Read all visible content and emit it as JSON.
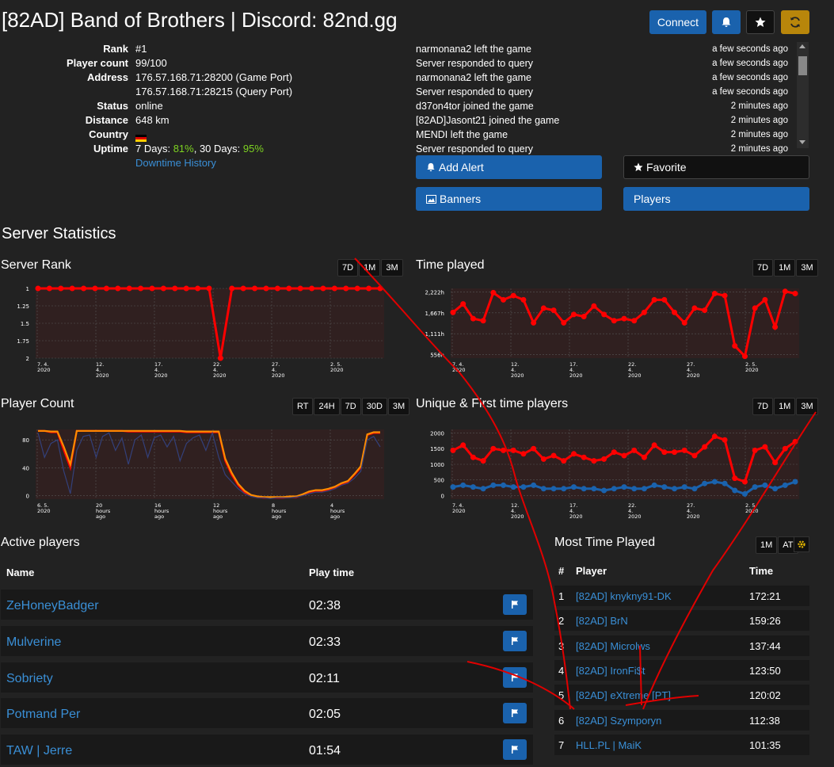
{
  "header": {
    "title": "[82AD] Band of Brothers | Discord: 82nd.gg",
    "connect_label": "Connect"
  },
  "info": {
    "rows": [
      {
        "key": "Rank",
        "value": "#1"
      },
      {
        "key": "Player count",
        "value": "99/100"
      },
      {
        "key": "Address",
        "value": "176.57.168.71:28200 (Game Port)"
      },
      {
        "key": "",
        "value": "176.57.168.71:28215 (Query Port)"
      },
      {
        "key": "Status",
        "value": "online"
      },
      {
        "key": "Distance",
        "value": "648 km"
      },
      {
        "key": "Country",
        "value": ""
      }
    ],
    "uptime_key": "Uptime",
    "uptime_7_label": "7 Days: ",
    "uptime_7_value": "81%",
    "uptime_30_label": ", 30 Days: ",
    "uptime_30_value": "95%",
    "downtime_link": "Downtime History"
  },
  "events": [
    {
      "text": "narmonana2 left the game",
      "time": "a few seconds ago"
    },
    {
      "text": "Server responded to query",
      "time": "a few seconds ago"
    },
    {
      "text": "narmonana2 left the game",
      "time": "a few seconds ago"
    },
    {
      "text": "Server responded to query",
      "time": "a few seconds ago"
    },
    {
      "text": "d37on4tor joined the game",
      "time": "2 minutes ago"
    },
    {
      "text": "[82AD]Jasont21 joined the game",
      "time": "2 minutes ago"
    },
    {
      "text": "MENDI left the game",
      "time": "2 minutes ago"
    },
    {
      "text": "Server responded to query",
      "time": "2 minutes ago"
    }
  ],
  "actions": {
    "add_alert": "Add Alert",
    "favorite": "Favorite",
    "banners": "Banners",
    "players": "Players"
  },
  "stats": {
    "heading": "Server Statistics",
    "rank_title": "Server Rank",
    "rank_ranges": [
      "7D",
      "1M",
      "3M"
    ],
    "time_title": "Time played",
    "time_ranges": [
      "7D",
      "1M",
      "3M"
    ],
    "count_title": "Player Count",
    "count_ranges": [
      "RT",
      "24H",
      "7D",
      "30D",
      "3M"
    ],
    "unique_title": "Unique & First time players",
    "unique_ranges": [
      "7D",
      "1M",
      "3M"
    ]
  },
  "chart_data": [
    {
      "type": "line",
      "title": "Server Rank",
      "y_ticks": [
        "1",
        "1.25",
        "1.5",
        "1.75",
        "2"
      ],
      "x_ticks": [
        [
          "7. 4.",
          "2020"
        ],
        [
          "12.",
          "4.",
          "2020"
        ],
        [
          "17.",
          "4.",
          "2020"
        ],
        [
          "22.",
          "4.",
          "2020"
        ],
        [
          "27.",
          "4.",
          "2020"
        ],
        [
          "2. 5.",
          "2020"
        ]
      ],
      "ylim": [
        1,
        2
      ],
      "y_inverted": true,
      "color": "#ff0000",
      "values": [
        1,
        1,
        1,
        1,
        1,
        1,
        1,
        1,
        1,
        1,
        1,
        1,
        1,
        1,
        1,
        1,
        2,
        1,
        1,
        1,
        1,
        1,
        1,
        1,
        1,
        1,
        1,
        1,
        1,
        1,
        1
      ]
    },
    {
      "type": "line",
      "title": "Time played",
      "y_ticks": [
        "2,222h",
        "1,667h",
        "1,111h",
        "556h"
      ],
      "x_ticks": [
        [
          "7. 4.",
          "2020"
        ],
        [
          "12.",
          "4.",
          "2020"
        ],
        [
          "17.",
          "4.",
          "2020"
        ],
        [
          "22.",
          "4.",
          "2020"
        ],
        [
          "27.",
          "4.",
          "2020"
        ],
        [
          "2. 5.",
          "2020"
        ]
      ],
      "ylim": [
        556,
        2222
      ],
      "color": "#ff0000",
      "values": [
        1650,
        1850,
        1500,
        1450,
        2120,
        1950,
        2050,
        1950,
        1400,
        1750,
        1700,
        1400,
        1600,
        1550,
        1800,
        1600,
        1450,
        1500,
        1450,
        1650,
        1950,
        1950,
        1650,
        1400,
        1750,
        1700,
        2100,
        2050,
        850,
        600,
        1750,
        1950,
        1300,
        2150,
        2100
      ]
    },
    {
      "type": "line",
      "title": "Player Count",
      "y_ticks": [
        "80",
        "40",
        "0"
      ],
      "x_ticks": [
        [
          "6. 5.",
          "2020"
        ],
        [
          "20",
          "hours",
          "ago"
        ],
        [
          "16",
          "hours",
          "ago"
        ],
        [
          "12",
          "hours",
          "ago"
        ],
        [
          "8",
          "hours",
          "ago"
        ],
        [
          "4",
          "hours",
          "ago"
        ]
      ],
      "ylim": [
        0,
        100
      ],
      "series": [
        {
          "color": "#ff0000",
          "values": [
            98,
            98,
            96,
            96,
            70,
            45,
            98,
            98,
            98,
            98,
            98,
            98,
            98,
            98,
            97,
            97,
            97,
            97,
            97,
            97,
            97,
            97,
            97,
            96,
            96,
            96,
            96,
            96,
            96,
            55,
            35,
            20,
            10,
            5,
            3,
            2,
            2,
            2,
            2,
            3,
            3,
            6,
            10,
            12,
            12,
            14,
            17,
            22,
            25,
            35,
            45,
            92,
            95,
            95
          ]
        },
        {
          "color": "#ff8c00",
          "values": [
            98,
            98,
            97,
            97,
            75,
            50,
            98,
            98,
            98,
            98,
            98,
            98,
            98,
            98,
            98,
            98,
            98,
            98,
            98,
            98,
            98,
            98,
            98,
            97,
            97,
            97,
            97,
            97,
            97,
            58,
            38,
            22,
            12,
            6,
            4,
            3,
            3,
            3,
            3,
            4,
            4,
            7,
            11,
            13,
            13,
            15,
            18,
            23,
            26,
            36,
            47,
            93,
            96,
            96
          ]
        },
        {
          "color": "#33407a",
          "values": [
            95,
            60,
            80,
            85,
            40,
            8,
            70,
            90,
            92,
            60,
            90,
            95,
            70,
            88,
            50,
            85,
            92,
            60,
            88,
            92,
            75,
            90,
            55,
            80,
            88,
            92,
            70,
            95,
            60,
            35,
            25,
            15,
            8,
            4,
            2,
            2,
            1,
            2,
            2,
            2,
            3,
            5,
            8,
            10,
            10,
            12,
            15,
            20,
            23,
            30,
            40,
            85,
            90,
            75
          ]
        }
      ]
    },
    {
      "type": "line",
      "title": "Unique & First time players",
      "y_ticks": [
        "2000",
        "1500",
        "1000",
        "500",
        "0"
      ],
      "x_ticks": [
        [
          "7. 4.",
          "2020"
        ],
        [
          "12.",
          "4.",
          "2020"
        ],
        [
          "17.",
          "4.",
          "2020"
        ],
        [
          "22.",
          "4.",
          "2020"
        ],
        [
          "27.",
          "4.",
          "2020"
        ],
        [
          "2. 5.",
          "2020"
        ]
      ],
      "ylim": [
        0,
        2000
      ],
      "series": [
        {
          "color": "#ff0000",
          "values": [
            1400,
            1550,
            1200,
            1100,
            1450,
            1400,
            1400,
            1300,
            1450,
            1150,
            1250,
            1100,
            1300,
            1200,
            1100,
            1150,
            1350,
            1250,
            1400,
            1200,
            1550,
            1350,
            1350,
            1400,
            1250,
            1500,
            1800,
            1700,
            600,
            500,
            1400,
            1500,
            1050,
            1450,
            1650
          ]
        },
        {
          "color": "#1a62ad",
          "values": [
            350,
            400,
            350,
            300,
            400,
            400,
            350,
            350,
            400,
            300,
            300,
            300,
            350,
            300,
            300,
            250,
            300,
            350,
            300,
            300,
            400,
            350,
            300,
            350,
            300,
            450,
            500,
            450,
            250,
            150,
            350,
            400,
            300,
            400,
            500
          ]
        }
      ]
    }
  ],
  "active_players": {
    "heading": "Active players",
    "col_name": "Name",
    "col_time": "Play time",
    "rows": [
      {
        "name": "ZeHoneyBadger",
        "time": "02:38"
      },
      {
        "name": "Mulverine",
        "time": "02:33"
      },
      {
        "name": "Sobriety",
        "time": "02:11"
      },
      {
        "name": "Potmand Per",
        "time": "02:05"
      },
      {
        "name": "TAW | Jerre",
        "time": "01:54"
      }
    ]
  },
  "most_time": {
    "heading": "Most Time Played",
    "ranges": [
      "1M",
      "AT"
    ],
    "col_rank": "#",
    "col_player": "Player",
    "col_time": "Time",
    "rows": [
      {
        "rank": "1",
        "player": "[82AD] knykny91-DK",
        "time": "172:21"
      },
      {
        "rank": "2",
        "player": "[82AD] BrN",
        "time": "159:26"
      },
      {
        "rank": "3",
        "player": "[82AD] Microlws",
        "time": "137:44"
      },
      {
        "rank": "4",
        "player": "[82AD] IronFi$t",
        "time": "123:50"
      },
      {
        "rank": "5",
        "player": "[82AD] eXtreme [PT]",
        "time": "120:02"
      },
      {
        "rank": "6",
        "player": "[82AD] Szymporyn",
        "time": "112:38"
      },
      {
        "rank": "7",
        "player": "HLL.PL | MaiK",
        "time": "101:35"
      }
    ]
  }
}
